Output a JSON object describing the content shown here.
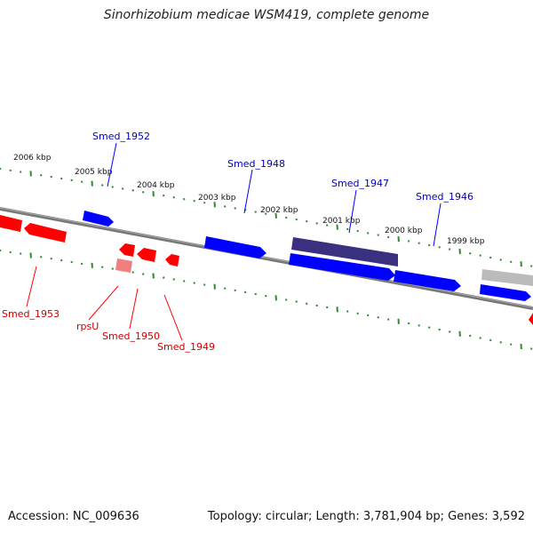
{
  "title": "Sinorhizobium medicae WSM419, complete genome",
  "footer": {
    "accession": "Accession: NC_009636",
    "summary": "Topology: circular; Length: 3,781,904 bp; Genes: 3,592"
  },
  "colors": {
    "forward_gene": "#0000ff",
    "reverse_gene": "#ff0000",
    "highlight_gene": "#3a3080",
    "pseudo_gene": "#bbbbbb",
    "backbone": "#777777",
    "tick": "#2e8b2e"
  },
  "ticks": [
    "2006 kbp",
    "2005 kbp",
    "2004 kbp",
    "2003 kbp",
    "2002 kbp",
    "2001 kbp",
    "2000 kbp",
    "1999 kbp"
  ],
  "labels": {
    "forward": [
      "Smed_1952",
      "Smed_1948",
      "Smed_1947",
      "Smed_1946"
    ],
    "reverse": [
      "Smed_1953",
      "rpsU",
      "Smed_1950",
      "Smed_1949"
    ]
  }
}
